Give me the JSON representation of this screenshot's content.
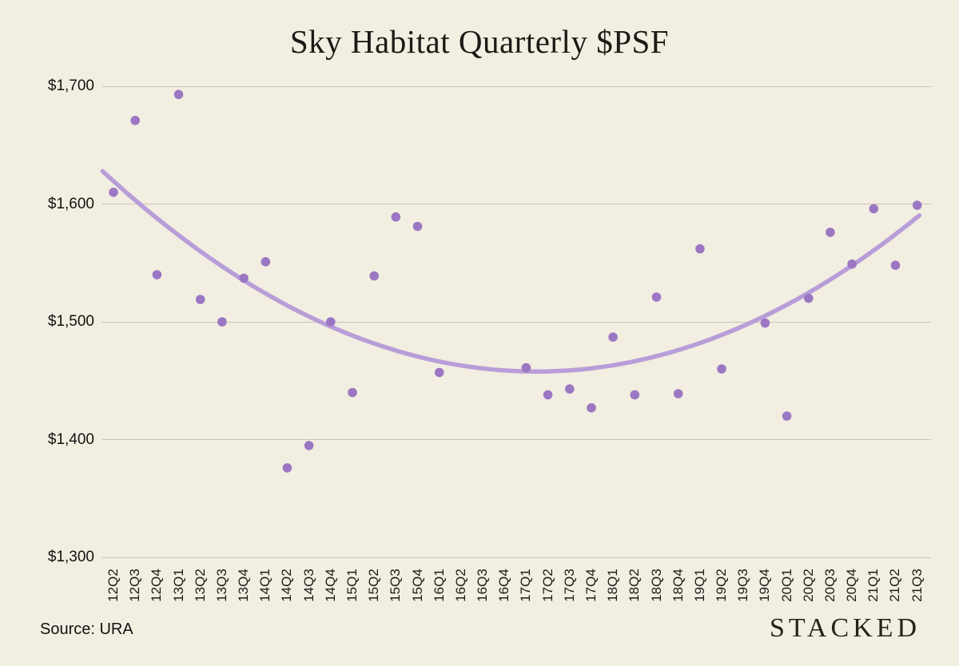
{
  "title": "Sky Habitat Quarterly $PSF",
  "source_label": "Source: URA",
  "brand": "STACKED",
  "colors": {
    "background": "#f2eee1",
    "dot": "#9b77c3",
    "trendline": "#b89ed8",
    "gridline": "#c7c3b8",
    "text": "#1c1b16"
  },
  "chart_data": {
    "type": "scatter",
    "title": "Sky Habitat Quarterly $PSF",
    "xlabel": "",
    "ylabel": "",
    "categories": [
      "12Q2",
      "12Q3",
      "12Q4",
      "13Q1",
      "13Q2",
      "13Q3",
      "13Q4",
      "14Q1",
      "14Q2",
      "14Q3",
      "14Q4",
      "15Q1",
      "15Q2",
      "15Q3",
      "15Q4",
      "16Q1",
      "16Q2",
      "16Q3",
      "16Q4",
      "17Q1",
      "17Q2",
      "17Q3",
      "17Q4",
      "18Q1",
      "18Q2",
      "18Q3",
      "18Q4",
      "19Q1",
      "19Q2",
      "19Q3",
      "19Q4",
      "20Q1",
      "20Q2",
      "20Q3",
      "20Q4",
      "21Q1",
      "21Q2",
      "21Q3"
    ],
    "values": [
      1610,
      1671,
      1540,
      1693,
      1519,
      1500,
      1537,
      1551,
      1376,
      1395,
      1500,
      1440,
      1539,
      1589,
      1581,
      1457,
      null,
      null,
      null,
      1461,
      1438,
      1443,
      1427,
      1487,
      1438,
      1521,
      1439,
      1562,
      1460,
      null,
      1499,
      1420,
      1520,
      1576,
      1549,
      1596,
      1548,
      1599
    ],
    "y_tick_values": [
      1700,
      1600,
      1500,
      1400,
      1300
    ],
    "y_tick_labels": [
      "$1,700",
      "$1,600",
      "$1,500",
      "$1,400",
      "$1,300"
    ],
    "ylim": [
      1300,
      1700
    ],
    "grid": "horizontal-only",
    "legend": "none",
    "trendline": "quadratic-least-squares",
    "x_tick_rotation_deg": -90
  }
}
